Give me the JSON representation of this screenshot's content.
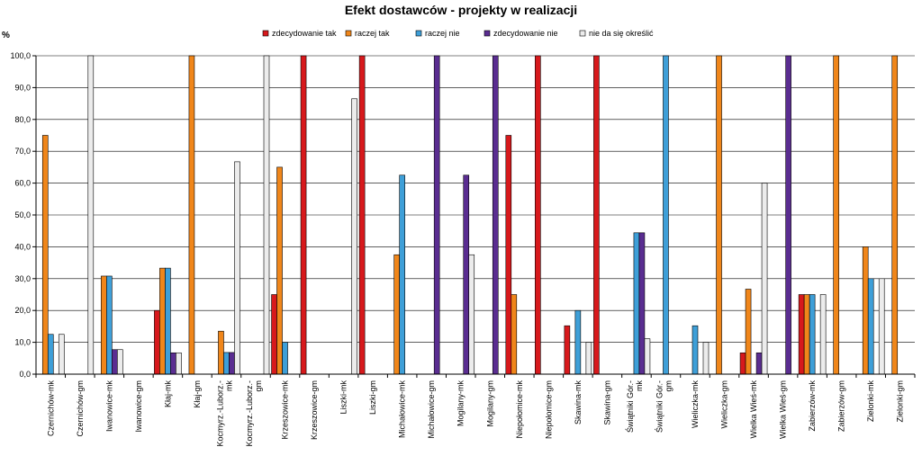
{
  "chart_data": {
    "type": "bar",
    "title": "Efekt dostawców - projekty w realizacji",
    "ylabel": "%",
    "xlabel": "",
    "ylim": [
      0,
      100
    ],
    "yticks": [
      "0,0",
      "10,0",
      "20,0",
      "30,0",
      "40,0",
      "50,0",
      "60,0",
      "70,0",
      "80,0",
      "90,0",
      "100,0"
    ],
    "grid": true,
    "legend": "top",
    "categories": [
      "Czernichów-mk",
      "Czernichów-gm",
      "Iwanowice-mk",
      "Iwanowice-gm",
      "Kłaj-mk",
      "Kłaj-gm",
      "Kocmyrz.-Luborz.-mk",
      "Kocmyrz.-Luborz.-gm",
      "Krzeszowice-mk",
      "Krzeszowice-gm",
      "Liszki-mk",
      "Liszki-gm",
      "Michałowice-mk",
      "Michałowice-gm",
      "Mogilany-mk",
      "Mogilany-gm",
      "Niepołomice-mk",
      "Niepołomice-gm",
      "Skawina-mk",
      "Skawina-gm",
      "Świątniki Gór.-mk",
      "Świątniki Gór.-gm",
      "Wieliczka-mk",
      "Wieliczka-gm",
      "Wielka Wieś-mk",
      "Wielka Wieś-gm",
      "Zabierzów-mk",
      "Zabierzów-gm",
      "Zielonki-mk",
      "Zielonki-gm"
    ],
    "series": [
      {
        "name": "zdecydowanie tak",
        "color": "#d7191c",
        "values": [
          0,
          0,
          0,
          0,
          20,
          0,
          0,
          0,
          25,
          100,
          0,
          100,
          0,
          0,
          0,
          0,
          75,
          100,
          15.2,
          100,
          0,
          0,
          0,
          0,
          6.7,
          0,
          25,
          0,
          0,
          0
        ]
      },
      {
        "name": "raczej tak",
        "color": "#f0861a",
        "values": [
          75,
          0,
          30.8,
          0,
          33.3,
          100,
          13.5,
          0,
          65,
          0,
          0,
          0,
          37.5,
          0,
          0,
          0,
          25,
          0,
          0,
          0,
          0,
          0,
          0,
          100,
          26.7,
          0,
          25,
          100,
          40,
          100
        ]
      },
      {
        "name": "raczej nie",
        "color": "#3e9fd8",
        "values": [
          12.5,
          0,
          30.8,
          0,
          33.3,
          0,
          6.8,
          0,
          10,
          0,
          0,
          0,
          62.5,
          0,
          0,
          0,
          0,
          0,
          20,
          0,
          44.4,
          100,
          15.2,
          0,
          0,
          0,
          25,
          0,
          30,
          0
        ]
      },
      {
        "name": "zdecydowanie nie",
        "color": "#5a2d91",
        "values": [
          0,
          0,
          7.7,
          0,
          6.7,
          0,
          6.8,
          0,
          0,
          0,
          0,
          0,
          0,
          100,
          62.5,
          100,
          0,
          0,
          0,
          0,
          44.4,
          0,
          0,
          0,
          6.7,
          100,
          0,
          0,
          0,
          0
        ]
      },
      {
        "name": "nie da się określić",
        "color": "#ececec",
        "values": [
          12.5,
          100,
          7.7,
          0,
          6.7,
          0,
          66.7,
          100,
          0,
          0,
          86.5,
          0,
          0,
          0,
          37.5,
          0,
          0,
          0,
          10,
          0,
          11.1,
          0,
          10,
          0,
          60,
          0,
          25,
          0,
          30,
          0
        ]
      }
    ]
  }
}
